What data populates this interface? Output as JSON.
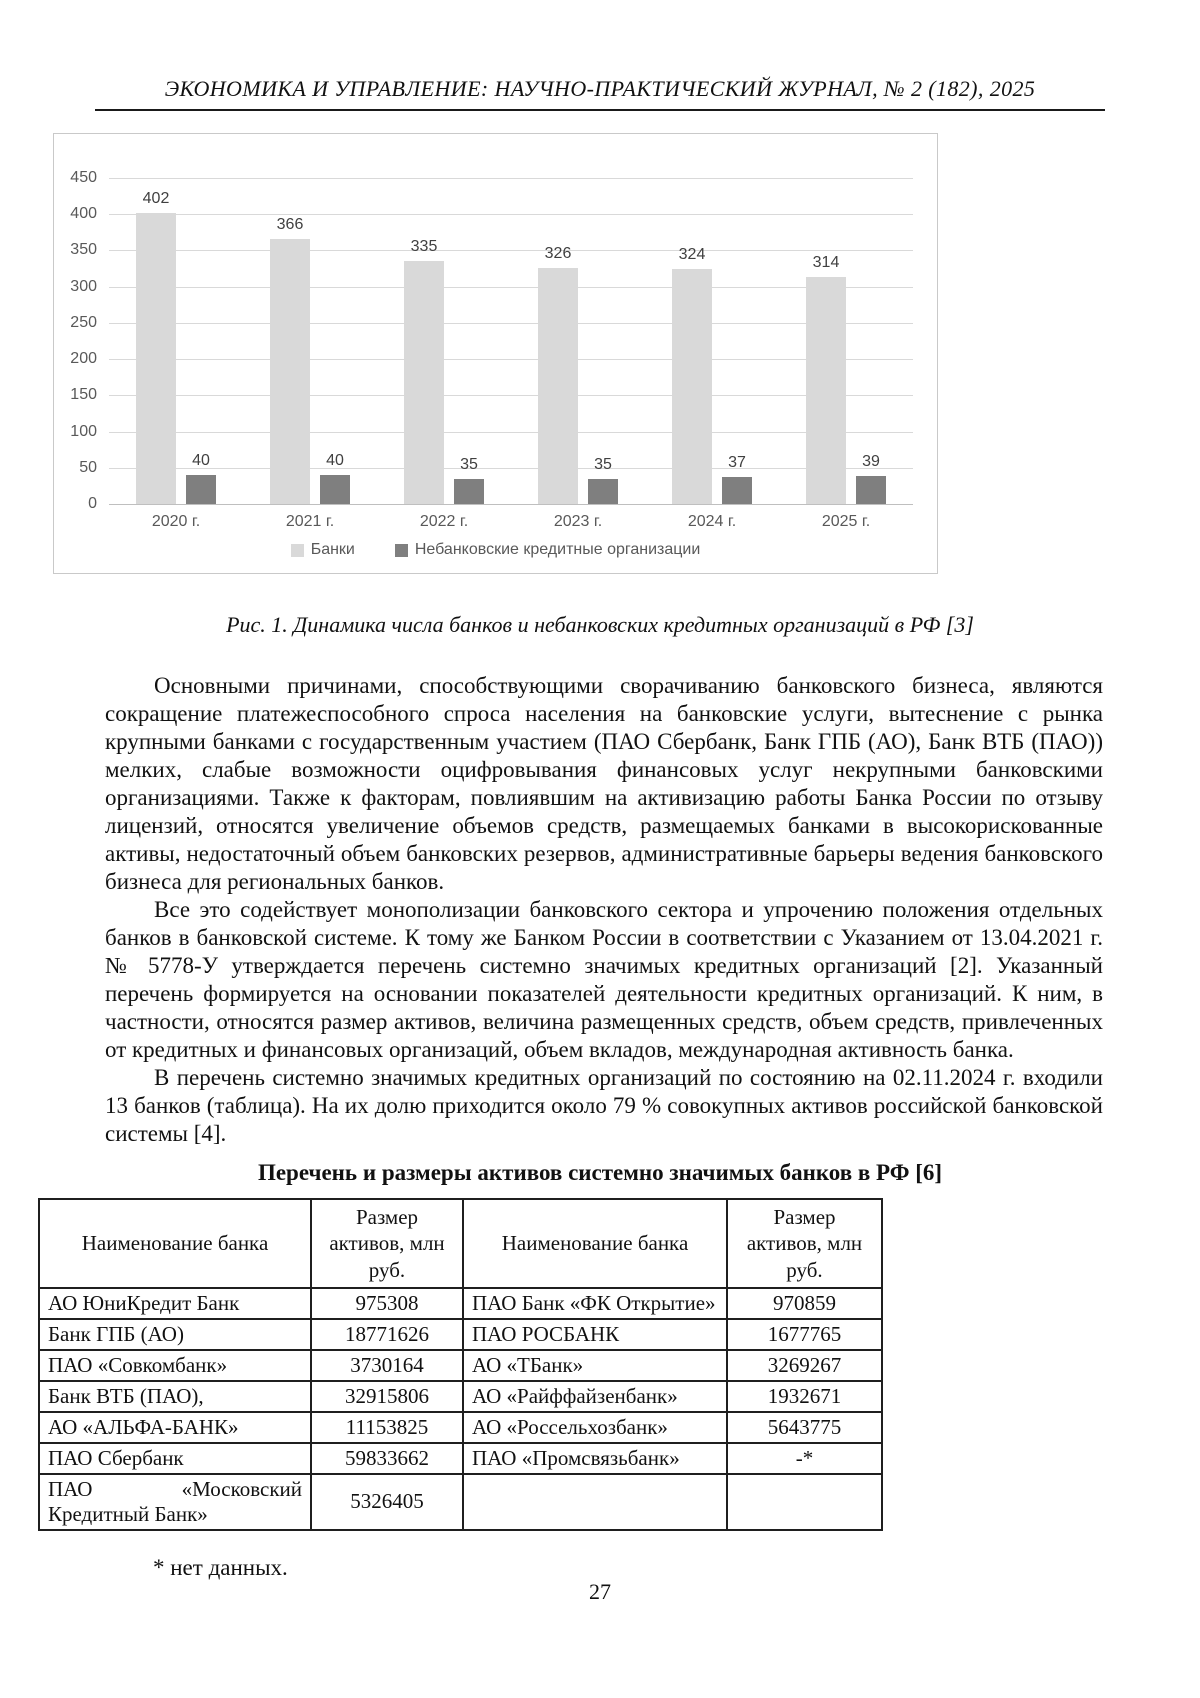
{
  "page": {
    "header": "ЭКОНОМИКА И УПРАВЛЕНИЕ: НАУЧНО-ПРАКТИЧЕСКИЙ ЖУРНАЛ, № 2 (182), 2025",
    "page_number": "27"
  },
  "chart_data": {
    "type": "bar",
    "title": "",
    "categories": [
      "2020 г.",
      "2021 г.",
      "2022 г.",
      "2023 г.",
      "2024 г.",
      "2025 г."
    ],
    "series": [
      {
        "name": "Банки",
        "color": "#d9d9d9",
        "values": [
          402,
          366,
          335,
          326,
          324,
          314
        ]
      },
      {
        "name": "Небанковские кредитные организации",
        "color": "#7f7f7f",
        "values": [
          40,
          40,
          35,
          35,
          37,
          39
        ]
      }
    ],
    "ylim": [
      0,
      450
    ],
    "ytick_step": 50,
    "grid": true,
    "legend_position": "bottom",
    "axis_text_color": "#595959",
    "value_label_color": "#404040"
  },
  "figure": {
    "caption": "Рис. 1. Динамика числа банков и небанковских кредитных организаций в РФ [3]"
  },
  "body": {
    "paragraphs": [
      "Основными причинами, способствующими сворачиванию банковского бизнеса, являются сокращение платежеспособного спроса населения на банковские услуги, вытеснение с рынка крупными банками с государственным участием (ПАО Сбербанк, Банк ГПБ (АО), Банк ВТБ (ПАО)) мелких, слабые возможности оцифровывания финансовых услуг некрупными банковскими организациями. Также к факторам, повлиявшим на активизацию работы Банка России по отзыву лицензий, относятся увеличение объемов средств, размещаемых банками в высокорискованные активы, недостаточный объем банковских резервов, административные барьеры ведения банковского бизнеса для региональных банков.",
      "Все это содействует монополизации банковского сектора и упрочению положения отдельных банков в банковской системе. К тому же Банком России в соответствии с Указанием от 13.04.2021 г. № 5778-У утверждается перечень системно значимых кредитных организаций [2]. Указанный перечень формируется на основании показателей деятельности кредитных организаций. К ним, в частности, относятся размер активов, величина размещенных средств, объем средств, привлеченных от кредитных и финансовых организаций, объем вкладов, международная активность банка.",
      "В перечень системно значимых кредитных организаций по состоянию на 02.11.2024 г. входили 13 банков (таблица). На их долю приходится около 79 % совокупных активов российской банковской системы [4]."
    ]
  },
  "table": {
    "title": "Перечень и размеры активов системно значимых банков в РФ [6]",
    "headers": [
      "Наименование банка",
      "Размер активов, млн руб.",
      "Наименование банка",
      "Размер активов, млн руб."
    ],
    "rows": [
      [
        "АО ЮниКредит Банк",
        "975308",
        "ПАО Банк «ФК Открытие»",
        "970859"
      ],
      [
        "Банк ГПБ (АО)",
        "18771626",
        "ПАО РОСБАНК",
        "1677765"
      ],
      [
        "ПАО «Совкомбанк»",
        "3730164",
        "АО «ТБанк»",
        "3269267"
      ],
      [
        "Банк ВТБ (ПАО),",
        "32915806",
        "АО «Райффайзенбанк»",
        "1932671"
      ],
      [
        "АО «АЛЬФА-БАНК»",
        "11153825",
        "АО «Россельхозбанк»",
        "5643775"
      ],
      [
        "ПАО Сбербанк",
        "59833662",
        "ПАО «Промсвязьбанк»",
        "-*"
      ],
      [
        "ПАО «Московский Кредитный Банк»",
        "5326405",
        "",
        ""
      ]
    ],
    "footnote": "* нет данных."
  }
}
